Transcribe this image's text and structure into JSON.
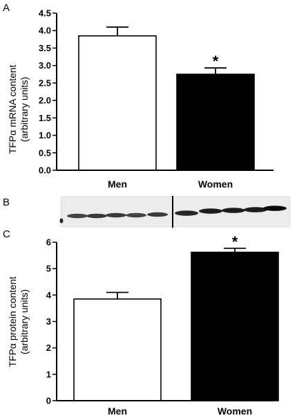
{
  "panels": {
    "a": {
      "letter": "A"
    },
    "b": {
      "letter": "B"
    },
    "c": {
      "letter": "C"
    }
  },
  "chart_data": [
    {
      "type": "bar",
      "panel": "A",
      "categories": [
        "Men",
        "Women"
      ],
      "values": [
        3.85,
        2.75
      ],
      "error": [
        0.25,
        0.18
      ],
      "bar_colors": [
        "#ffffff",
        "#000000"
      ],
      "significance": [
        "",
        "*"
      ],
      "ylabel_line1": "TFPα mRNA content",
      "ylabel_line2": "(arbitrary units)",
      "ylim": [
        0,
        4.5
      ],
      "yticks": [
        "0.0",
        "0.5",
        "1.0",
        "1.5",
        "2.0",
        "2.5",
        "3.0",
        "3.5",
        "4.0",
        "4.5"
      ],
      "grid": false
    },
    {
      "type": "bar",
      "panel": "C",
      "categories": [
        "Men",
        "Women"
      ],
      "values": [
        3.85,
        5.62
      ],
      "error": [
        0.25,
        0.15
      ],
      "bar_colors": [
        "#ffffff",
        "#000000"
      ],
      "significance": [
        "",
        "*"
      ],
      "ylabel_line1": "TFPα protein content",
      "ylabel_line2": "(arbitrary units)",
      "ylim": [
        0,
        6
      ],
      "yticks": [
        "0",
        "1",
        "2",
        "3",
        "4",
        "5",
        "6"
      ],
      "grid": false
    }
  ],
  "blot": {
    "lanes_left": 5,
    "lanes_right": 5,
    "band_intensity_left": [
      0.7,
      0.75,
      0.75,
      0.7,
      0.75
    ],
    "band_intensity_right": [
      0.85,
      0.9,
      0.9,
      0.9,
      1.0
    ],
    "separator": true
  }
}
